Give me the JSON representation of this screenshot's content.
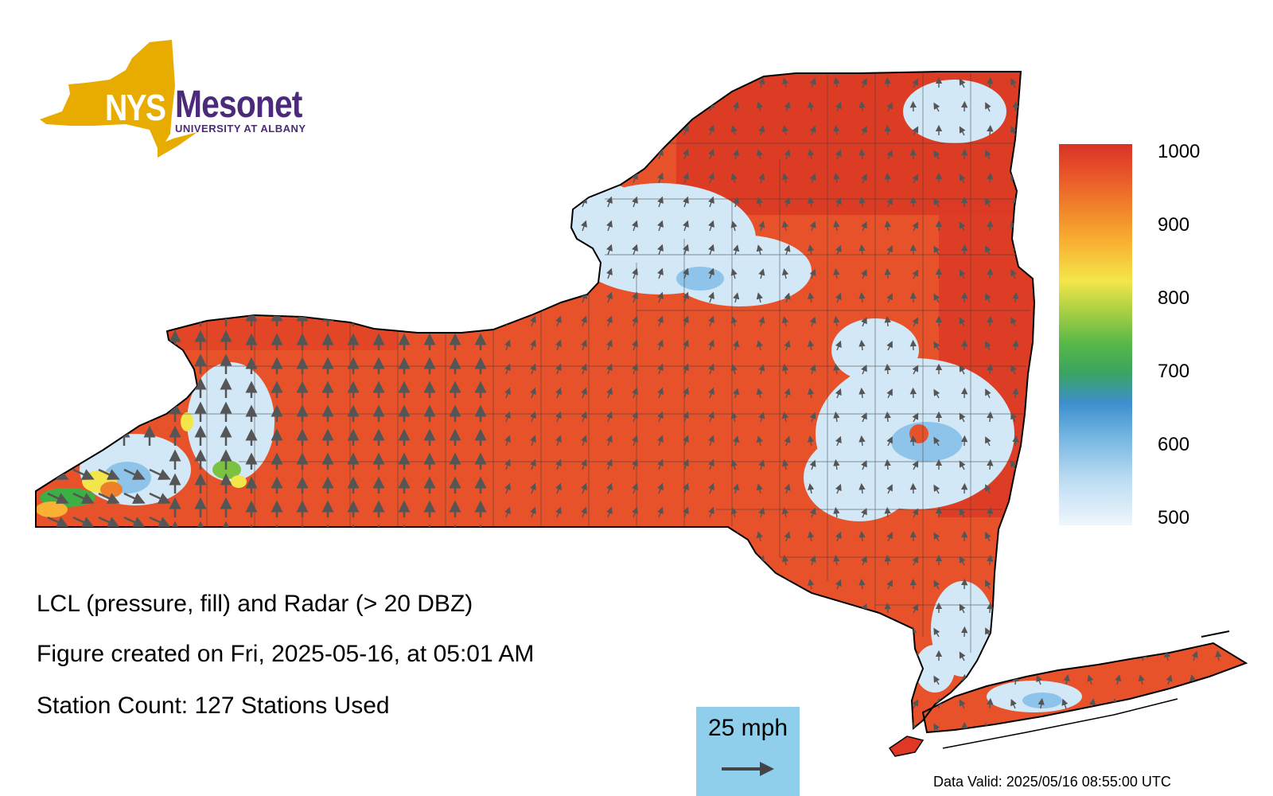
{
  "logo": {
    "nys": "NYS",
    "mesonet": "Mesonet",
    "university": "UNIVERSITY AT ALBANY",
    "gold_color": "#e8ab00",
    "purple_color": "#4b2a7b"
  },
  "info": {
    "title": "LCL (pressure, fill) and Radar (> 20 DBZ)",
    "created": "Figure created on Fri, 2025-05-16, at 05:01 AM",
    "station_count": "Station Count: 127 Stations Used"
  },
  "legend": {
    "labels": [
      "1000",
      "900",
      "800",
      "700",
      "600",
      "500"
    ],
    "min": 500,
    "max": 1000,
    "colors": [
      "#e8f2fb",
      "#bcdcf2",
      "#6fb2e0",
      "#3d8fcf",
      "#45a36a",
      "#3cb043",
      "#7bc242",
      "#f5e94a",
      "#f9b233",
      "#f07f2a",
      "#e84f22",
      "#d93226"
    ]
  },
  "scale": {
    "label": "25 mph",
    "box_color": "#8fcfec"
  },
  "valid": "Data Valid: 2025/05/16 08:55:00 UTC",
  "map": {
    "field_color": "#e9522a",
    "low_lcl_color": "#cfe6f6",
    "wind_arrow_color": "#555555"
  }
}
